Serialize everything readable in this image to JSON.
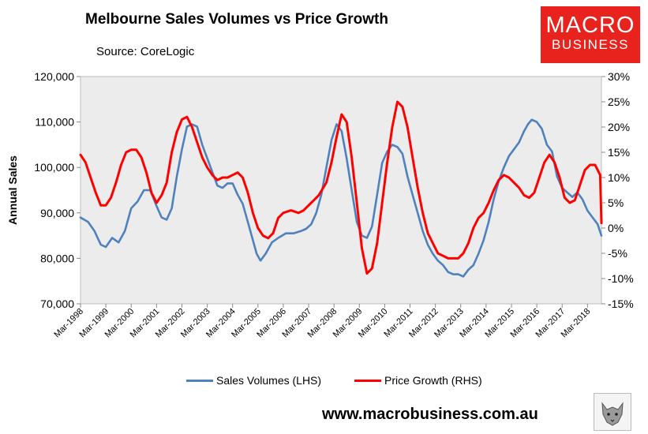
{
  "header": {
    "title": "Melbourne Sales Volumes vs Price Growth",
    "subtitle": "Source: CoreLogic"
  },
  "logo": {
    "line1": "MACRO",
    "line2": "BUSINESS"
  },
  "footer": {
    "website": "www.macrobusiness.com.au"
  },
  "colors": {
    "sales": "#4f81bd",
    "price": "#ff0000",
    "plot_bg": "#ececec"
  },
  "chart_data": {
    "type": "line",
    "ylabel_left": "Annual Sales",
    "y_left": {
      "min": 70000,
      "max": 120000,
      "step": 10000,
      "ticks": [
        "70,000",
        "80,000",
        "90,000",
        "100,000",
        "110,000",
        "120,000"
      ]
    },
    "y_right": {
      "min": -15,
      "max": 30,
      "step": 5,
      "ticks": [
        "-15%",
        "-10%",
        "-5%",
        "0%",
        "5%",
        "10%",
        "15%",
        "20%",
        "25%",
        "30%"
      ]
    },
    "x_range": [
      1998.2,
      2018.75
    ],
    "x_ticks": [
      "Mar-1998",
      "Mar-1999",
      "Mar-2000",
      "Mar-2001",
      "Mar-2002",
      "Mar-2003",
      "Mar-2004",
      "Mar-2005",
      "Mar-2006",
      "Mar-2007",
      "Mar-2008",
      "Mar-2009",
      "Mar-2010",
      "Mar-2011",
      "Mar-2012",
      "Mar-2013",
      "Mar-2014",
      "Mar-2015",
      "Mar-2016",
      "Mar-2017",
      "Mar-2018"
    ],
    "grid": false,
    "legend": "bottom",
    "series": [
      {
        "name": "Sales Volumes (LHS)",
        "axis": "left",
        "points": [
          [
            1998.2,
            89000
          ],
          [
            1998.5,
            88000
          ],
          [
            1998.75,
            86000
          ],
          [
            1999.0,
            83000
          ],
          [
            1999.2,
            82500
          ],
          [
            1999.45,
            84500
          ],
          [
            1999.7,
            83500
          ],
          [
            1999.95,
            86000
          ],
          [
            2000.2,
            91000
          ],
          [
            2000.45,
            92500
          ],
          [
            2000.7,
            95000
          ],
          [
            2000.95,
            95000
          ],
          [
            2001.2,
            91500
          ],
          [
            2001.4,
            89000
          ],
          [
            2001.6,
            88500
          ],
          [
            2001.8,
            91000
          ],
          [
            2002.0,
            98000
          ],
          [
            2002.2,
            104000
          ],
          [
            2002.4,
            109000
          ],
          [
            2002.6,
            109500
          ],
          [
            2002.8,
            109000
          ],
          [
            2003.0,
            105000
          ],
          [
            2003.2,
            102000
          ],
          [
            2003.4,
            99000
          ],
          [
            2003.6,
            96000
          ],
          [
            2003.8,
            95500
          ],
          [
            2004.0,
            96500
          ],
          [
            2004.2,
            96500
          ],
          [
            2004.4,
            94000
          ],
          [
            2004.6,
            92000
          ],
          [
            2004.8,
            88000
          ],
          [
            2005.0,
            84000
          ],
          [
            2005.15,
            81000
          ],
          [
            2005.3,
            79500
          ],
          [
            2005.5,
            81000
          ],
          [
            2005.75,
            83500
          ],
          [
            2006.0,
            84500
          ],
          [
            2006.3,
            85500
          ],
          [
            2006.6,
            85500
          ],
          [
            2006.9,
            86000
          ],
          [
            2007.1,
            86500
          ],
          [
            2007.3,
            87500
          ],
          [
            2007.5,
            90000
          ],
          [
            2007.7,
            94000
          ],
          [
            2007.9,
            100000
          ],
          [
            2008.1,
            106000
          ],
          [
            2008.3,
            109500
          ],
          [
            2008.5,
            108000
          ],
          [
            2008.7,
            102000
          ],
          [
            2008.9,
            95000
          ],
          [
            2009.1,
            88000
          ],
          [
            2009.3,
            85000
          ],
          [
            2009.5,
            84500
          ],
          [
            2009.7,
            87000
          ],
          [
            2009.9,
            94000
          ],
          [
            2010.1,
            101000
          ],
          [
            2010.3,
            103500
          ],
          [
            2010.5,
            105000
          ],
          [
            2010.7,
            104500
          ],
          [
            2010.9,
            103000
          ],
          [
            2011.1,
            98000
          ],
          [
            2011.3,
            94000
          ],
          [
            2011.5,
            90000
          ],
          [
            2011.7,
            86000
          ],
          [
            2011.9,
            83000
          ],
          [
            2012.1,
            81000
          ],
          [
            2012.3,
            79500
          ],
          [
            2012.5,
            78500
          ],
          [
            2012.7,
            77000
          ],
          [
            2012.9,
            76500
          ],
          [
            2013.1,
            76500
          ],
          [
            2013.3,
            76000
          ],
          [
            2013.5,
            77500
          ],
          [
            2013.7,
            78500
          ],
          [
            2013.9,
            81000
          ],
          [
            2014.1,
            84000
          ],
          [
            2014.3,
            88000
          ],
          [
            2014.5,
            93000
          ],
          [
            2014.7,
            97000
          ],
          [
            2014.9,
            100000
          ],
          [
            2015.1,
            102500
          ],
          [
            2015.3,
            104000
          ],
          [
            2015.5,
            105500
          ],
          [
            2015.7,
            108000
          ],
          [
            2015.85,
            109500
          ],
          [
            2016.0,
            110500
          ],
          [
            2016.2,
            110000
          ],
          [
            2016.4,
            108500
          ],
          [
            2016.6,
            105000
          ],
          [
            2016.8,
            103500
          ],
          [
            2017.0,
            98000
          ],
          [
            2017.2,
            95500
          ],
          [
            2017.4,
            94500
          ],
          [
            2017.6,
            93500
          ],
          [
            2017.8,
            94500
          ],
          [
            2018.0,
            93000
          ],
          [
            2018.2,
            90500
          ],
          [
            2018.4,
            89000
          ],
          [
            2018.6,
            87500
          ],
          [
            2018.75,
            85000
          ]
        ]
      },
      {
        "name": "Price Growth (RHS)",
        "axis": "right",
        "points": [
          [
            1998.2,
            14.5
          ],
          [
            1998.4,
            13
          ],
          [
            1998.6,
            10
          ],
          [
            1998.8,
            7
          ],
          [
            1999.0,
            4.5
          ],
          [
            1999.2,
            4.5
          ],
          [
            1999.4,
            6
          ],
          [
            1999.6,
            9
          ],
          [
            1999.8,
            12.5
          ],
          [
            2000.0,
            15
          ],
          [
            2000.2,
            15.5
          ],
          [
            2000.4,
            15.5
          ],
          [
            2000.6,
            14
          ],
          [
            2000.8,
            11
          ],
          [
            2001.0,
            7
          ],
          [
            2001.2,
            5
          ],
          [
            2001.4,
            6.5
          ],
          [
            2001.6,
            9
          ],
          [
            2001.8,
            15
          ],
          [
            2002.0,
            19
          ],
          [
            2002.2,
            21.5
          ],
          [
            2002.4,
            22
          ],
          [
            2002.6,
            20
          ],
          [
            2002.8,
            17
          ],
          [
            2003.0,
            14
          ],
          [
            2003.2,
            12
          ],
          [
            2003.4,
            10.5
          ],
          [
            2003.6,
            9.5
          ],
          [
            2003.8,
            10
          ],
          [
            2004.0,
            10
          ],
          [
            2004.2,
            10.5
          ],
          [
            2004.4,
            11
          ],
          [
            2004.6,
            10
          ],
          [
            2004.8,
            7
          ],
          [
            2005.0,
            3
          ],
          [
            2005.2,
            0
          ],
          [
            2005.4,
            -1.5
          ],
          [
            2005.6,
            -2
          ],
          [
            2005.8,
            -1
          ],
          [
            2006.0,
            2
          ],
          [
            2006.2,
            3
          ],
          [
            2006.5,
            3.5
          ],
          [
            2006.8,
            3
          ],
          [
            2007.0,
            3.5
          ],
          [
            2007.3,
            5
          ],
          [
            2007.6,
            6.5
          ],
          [
            2007.9,
            9
          ],
          [
            2008.1,
            13
          ],
          [
            2008.3,
            18
          ],
          [
            2008.5,
            22.5
          ],
          [
            2008.7,
            21
          ],
          [
            2008.9,
            14
          ],
          [
            2009.1,
            5
          ],
          [
            2009.3,
            -4
          ],
          [
            2009.5,
            -9
          ],
          [
            2009.7,
            -8
          ],
          [
            2009.9,
            -3
          ],
          [
            2010.1,
            5
          ],
          [
            2010.3,
            13
          ],
          [
            2010.5,
            20
          ],
          [
            2010.7,
            25
          ],
          [
            2010.9,
            24
          ],
          [
            2011.1,
            20
          ],
          [
            2011.3,
            14
          ],
          [
            2011.5,
            8
          ],
          [
            2011.7,
            3
          ],
          [
            2011.9,
            -1
          ],
          [
            2012.1,
            -3
          ],
          [
            2012.3,
            -5
          ],
          [
            2012.5,
            -5.5
          ],
          [
            2012.7,
            -6
          ],
          [
            2012.9,
            -6
          ],
          [
            2013.1,
            -6
          ],
          [
            2013.3,
            -5
          ],
          [
            2013.5,
            -3
          ],
          [
            2013.7,
            0
          ],
          [
            2013.9,
            2
          ],
          [
            2014.1,
            3
          ],
          [
            2014.3,
            5
          ],
          [
            2014.5,
            7.5
          ],
          [
            2014.7,
            9.5
          ],
          [
            2014.9,
            10.5
          ],
          [
            2015.1,
            10
          ],
          [
            2015.3,
            9
          ],
          [
            2015.5,
            8
          ],
          [
            2015.7,
            6.5
          ],
          [
            2015.9,
            6
          ],
          [
            2016.1,
            7
          ],
          [
            2016.3,
            10
          ],
          [
            2016.5,
            13
          ],
          [
            2016.7,
            14.5
          ],
          [
            2016.9,
            13
          ],
          [
            2017.1,
            10
          ],
          [
            2017.3,
            6
          ],
          [
            2017.5,
            5
          ],
          [
            2017.7,
            5.5
          ],
          [
            2017.9,
            8.5
          ],
          [
            2018.1,
            11.5
          ],
          [
            2018.3,
            12.5
          ],
          [
            2018.5,
            12.5
          ],
          [
            2018.7,
            10.5
          ],
          [
            2018.75,
            1
          ]
        ]
      }
    ]
  }
}
